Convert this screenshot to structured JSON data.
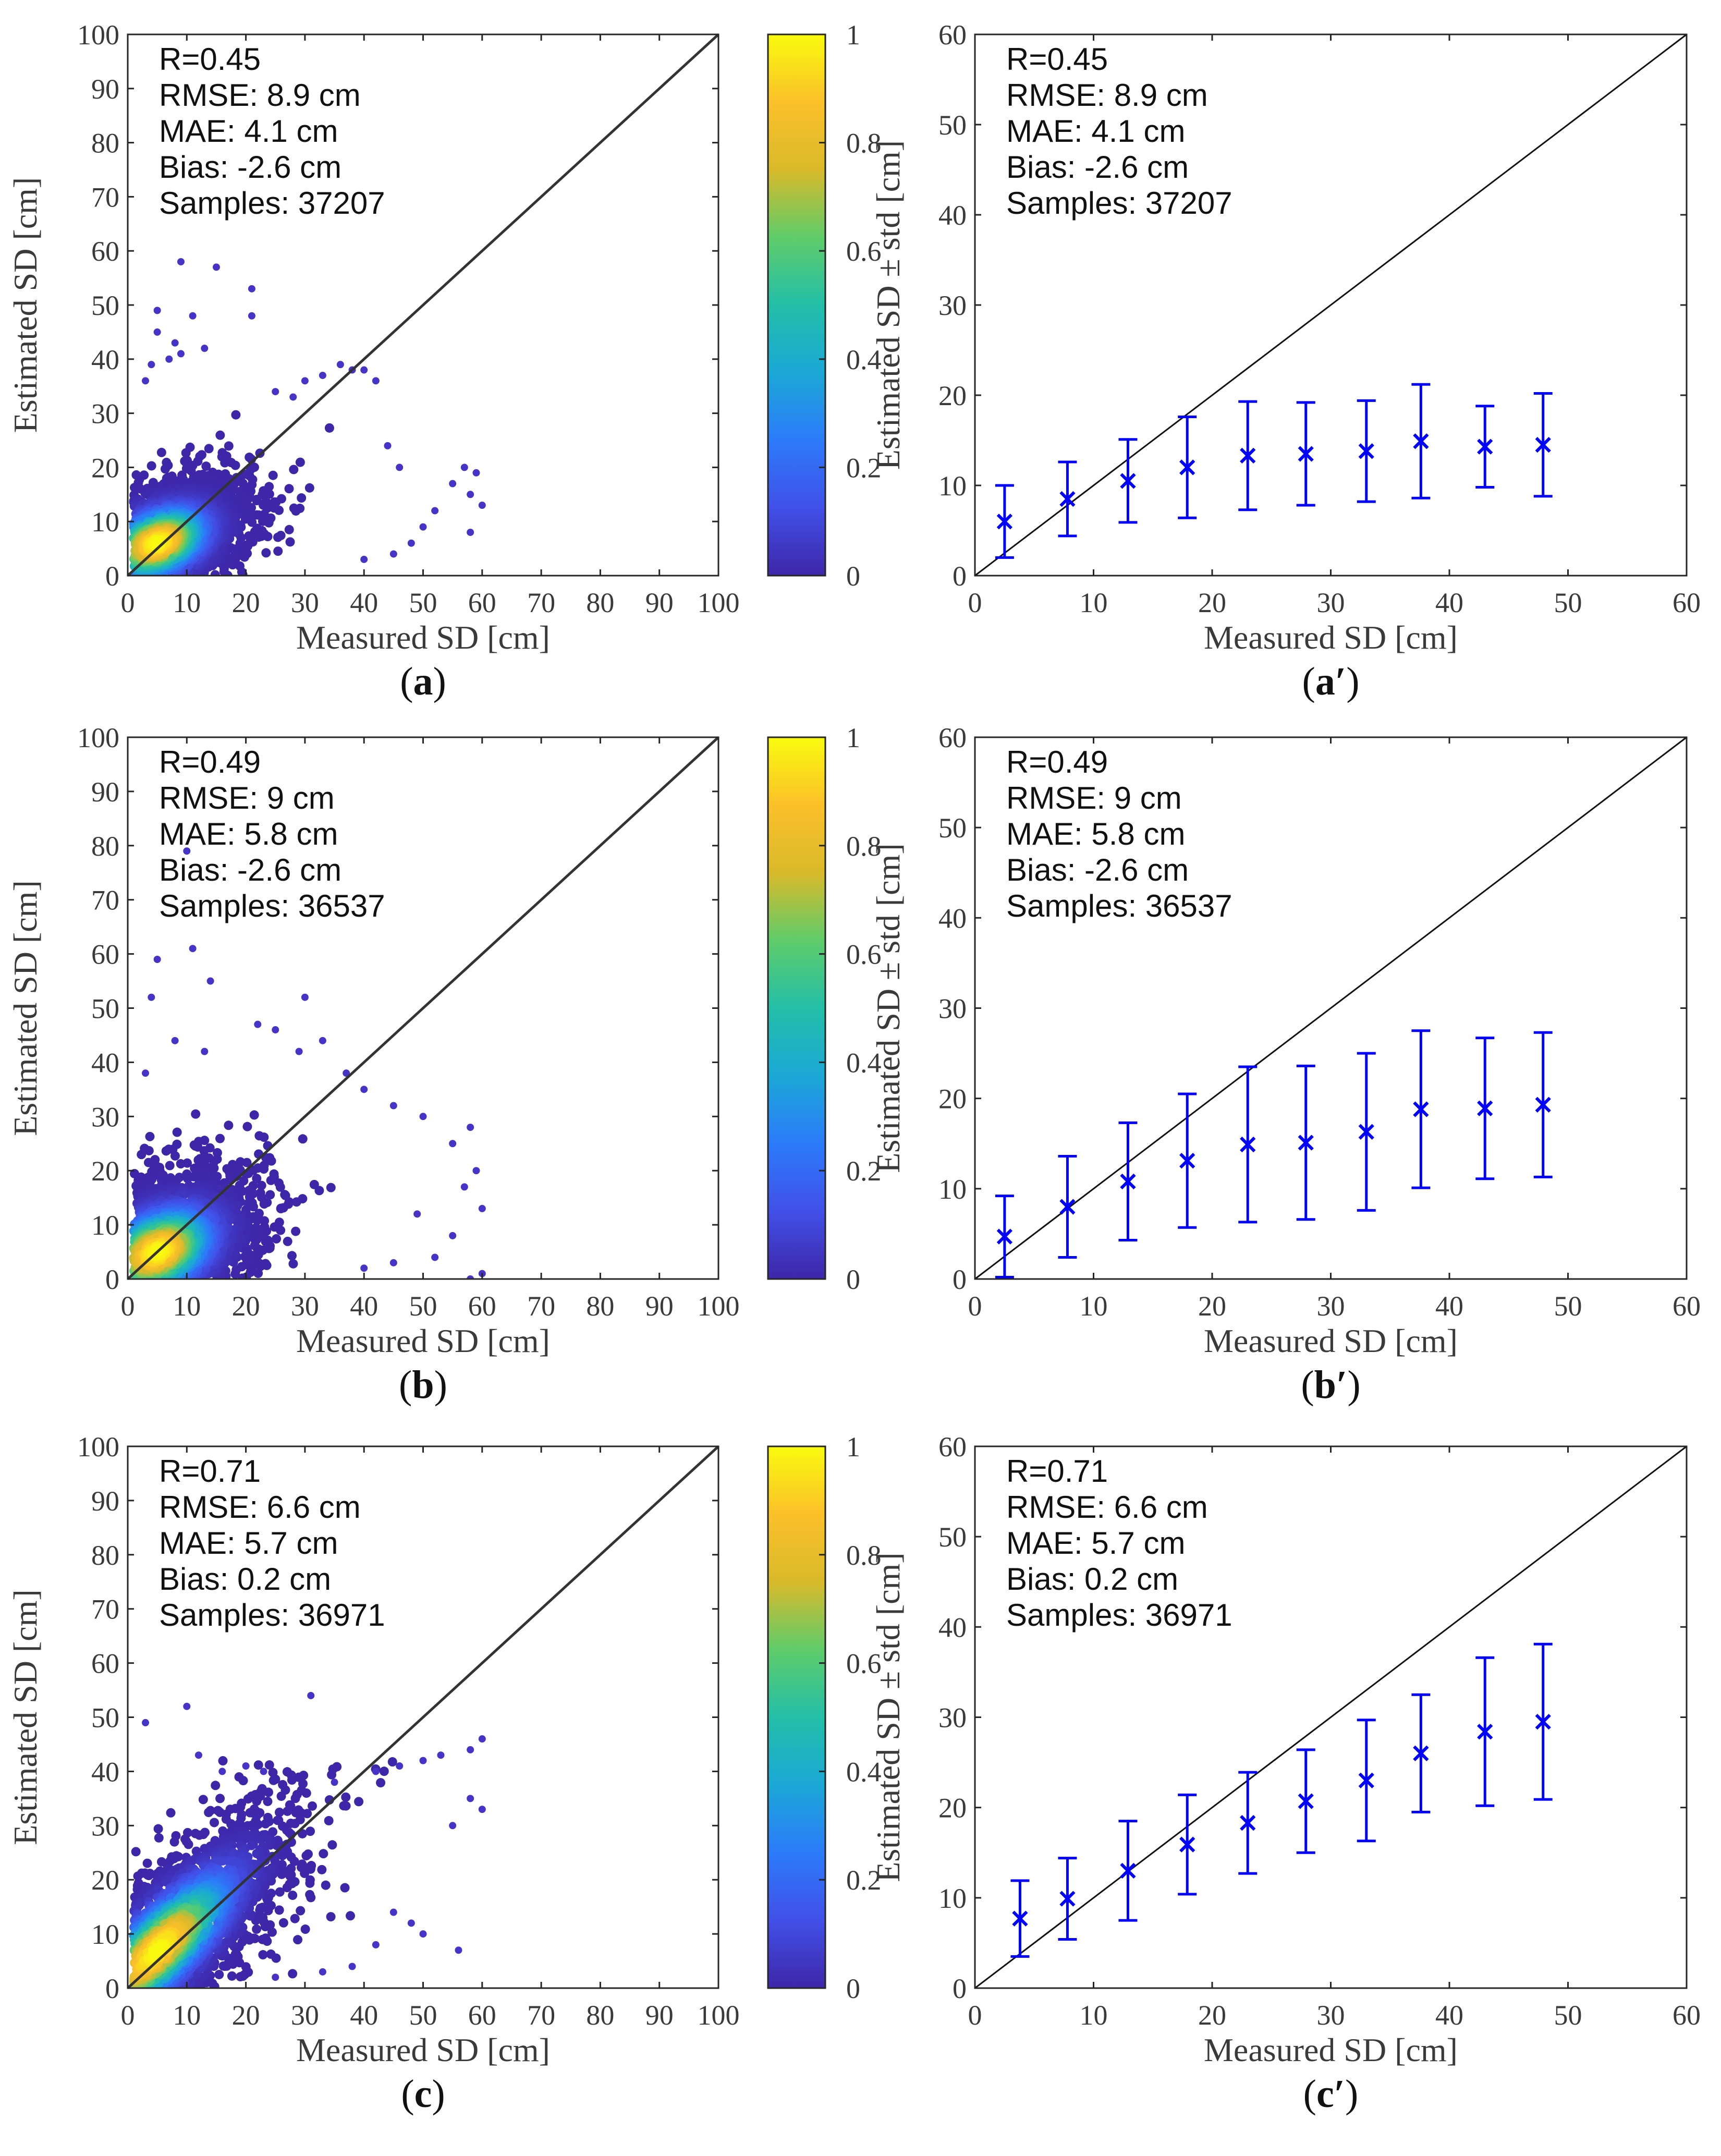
{
  "figure": {
    "colormap": [
      "#3e26a8",
      "#4150e8",
      "#2c7bfa",
      "#1ba8d6",
      "#23bfa8",
      "#5fcc6a",
      "#d9ba2a",
      "#fbc02a",
      "#f9fb0e"
    ],
    "line_color": "#333333",
    "marker_color": "#0000ff",
    "point_color": "#4634c8"
  },
  "chart_data": [
    {
      "id": "a",
      "type": "scatter",
      "style": "density",
      "panel_label": "a",
      "panel_mark": "",
      "xlabel": "Measured SD [cm]",
      "ylabel": "Estimated SD [cm]",
      "xlim": [
        0,
        100
      ],
      "ylim": [
        0,
        100
      ],
      "xticks": [
        0,
        10,
        20,
        30,
        40,
        50,
        60,
        70,
        80,
        90,
        100
      ],
      "yticks": [
        0,
        10,
        20,
        30,
        40,
        50,
        60,
        70,
        80,
        90,
        100
      ],
      "stats": [
        "R=0.45",
        "RMSE: 8.9 cm",
        "MAE: 4.1 cm",
        "Bias: -2.6 cm",
        "Samples: 37207"
      ],
      "density": {
        "mean": [
          5,
          6
        ],
        "cov": [
          [
            20,
            6
          ],
          [
            6,
            12
          ]
        ],
        "extent": [
          [
            1,
            60
          ],
          [
            0,
            36
          ]
        ],
        "outliers": [
          [
            9,
            58
          ],
          [
            15,
            57
          ],
          [
            21,
            53
          ],
          [
            21,
            48
          ],
          [
            5,
            49
          ],
          [
            11,
            48
          ],
          [
            5,
            45
          ],
          [
            8,
            43
          ],
          [
            9,
            41
          ],
          [
            7,
            40
          ],
          [
            13,
            42
          ],
          [
            4,
            39
          ],
          [
            3,
            36
          ],
          [
            36,
            39
          ],
          [
            38,
            38
          ],
          [
            40,
            38
          ],
          [
            42,
            36
          ],
          [
            33,
            37
          ],
          [
            57,
            20
          ],
          [
            59,
            19
          ],
          [
            58,
            15
          ],
          [
            60,
            13
          ],
          [
            58,
            8
          ],
          [
            55,
            17
          ],
          [
            48,
            6
          ],
          [
            45,
            4
          ],
          [
            40,
            3
          ],
          [
            50,
            9
          ],
          [
            52,
            12
          ],
          [
            46,
            20
          ],
          [
            44,
            24
          ],
          [
            30,
            36
          ],
          [
            28,
            33
          ],
          [
            25,
            34
          ]
        ]
      },
      "colorbar": {
        "ticks": [
          0,
          0.2,
          0.4,
          0.6,
          0.8,
          1
        ]
      }
    },
    {
      "id": "a-prime",
      "type": "scatter",
      "style": "errorbar",
      "panel_label": "a",
      "panel_mark": "′",
      "xlabel": "Measured SD [cm]",
      "ylabel": "Estimated SD ± std [cm]",
      "xlim": [
        0,
        60
      ],
      "ylim": [
        0,
        60
      ],
      "xticks": [
        0,
        10,
        20,
        30,
        40,
        50,
        60
      ],
      "yticks": [
        0,
        10,
        20,
        30,
        40,
        50,
        60
      ],
      "stats": [
        "R=0.45",
        "RMSE: 8.9 cm",
        "MAE: 4.1 cm",
        "Bias: -2.6 cm",
        "Samples: 37207"
      ],
      "x": [
        2.5,
        7.8,
        12.9,
        17.9,
        23.0,
        27.9,
        33.0,
        37.6,
        43.0,
        47.9
      ],
      "y": [
        6.0,
        8.5,
        10.5,
        12.0,
        13.3,
        13.5,
        13.8,
        14.9,
        14.3,
        14.5
      ],
      "err": [
        4.0,
        4.1,
        4.6,
        5.6,
        6.0,
        5.7,
        5.6,
        6.3,
        4.5,
        5.7
      ]
    },
    {
      "id": "b",
      "type": "scatter",
      "style": "density",
      "panel_label": "b",
      "panel_mark": "",
      "xlabel": "Measured SD [cm]",
      "ylabel": "Estimated SD [cm]",
      "xlim": [
        0,
        100
      ],
      "ylim": [
        0,
        100
      ],
      "xticks": [
        0,
        10,
        20,
        30,
        40,
        50,
        60,
        70,
        80,
        90,
        100
      ],
      "yticks": [
        0,
        10,
        20,
        30,
        40,
        50,
        60,
        70,
        80,
        90,
        100
      ],
      "stats": [
        "R=0.49",
        "RMSE: 9 cm",
        "MAE: 5.8 cm",
        "Bias: -2.6 cm",
        "Samples: 36537"
      ],
      "density": {
        "mean": [
          5,
          5
        ],
        "cov": [
          [
            25,
            8
          ],
          [
            8,
            18
          ]
        ],
        "extent": [
          [
            1,
            60
          ],
          [
            0,
            34
          ]
        ],
        "outliers": [
          [
            10,
            79
          ],
          [
            5,
            59
          ],
          [
            11,
            61
          ],
          [
            14,
            55
          ],
          [
            4,
            52
          ],
          [
            8,
            44
          ],
          [
            13,
            42
          ],
          [
            22,
            47
          ],
          [
            25,
            46
          ],
          [
            30,
            52
          ],
          [
            33,
            44
          ],
          [
            29,
            42
          ],
          [
            3,
            38
          ],
          [
            37,
            38
          ],
          [
            40,
            35
          ],
          [
            45,
            32
          ],
          [
            50,
            30
          ],
          [
            55,
            25
          ],
          [
            58,
            28
          ],
          [
            59,
            20
          ],
          [
            57,
            17
          ],
          [
            60,
            13
          ],
          [
            60,
            1
          ],
          [
            58,
            0
          ],
          [
            55,
            8
          ],
          [
            49,
            12
          ],
          [
            52,
            4
          ],
          [
            45,
            3
          ],
          [
            40,
            2
          ]
        ]
      },
      "colorbar": {
        "ticks": [
          0,
          0.2,
          0.4,
          0.6,
          0.8,
          1
        ]
      }
    },
    {
      "id": "b-prime",
      "type": "scatter",
      "style": "errorbar",
      "panel_label": "b",
      "panel_mark": "′",
      "xlabel": "Measured SD [cm]",
      "ylabel": "Estimated SD ± std [cm]",
      "xlim": [
        0,
        60
      ],
      "ylim": [
        0,
        60
      ],
      "xticks": [
        0,
        10,
        20,
        30,
        40,
        50,
        60
      ],
      "yticks": [
        0,
        10,
        20,
        30,
        40,
        50,
        60
      ],
      "stats": [
        "R=0.49",
        "RMSE: 9 cm",
        "MAE: 5.8 cm",
        "Bias: -2.6 cm",
        "Samples: 36537"
      ],
      "x": [
        2.5,
        7.8,
        12.9,
        17.9,
        23.0,
        27.9,
        33.0,
        37.6,
        43.0,
        47.9
      ],
      "y": [
        4.7,
        8.0,
        10.8,
        13.1,
        14.9,
        15.1,
        16.3,
        18.8,
        18.9,
        19.3
      ],
      "err": [
        4.5,
        5.6,
        6.5,
        7.4,
        8.6,
        8.5,
        8.7,
        8.7,
        7.8,
        8.0
      ]
    },
    {
      "id": "c",
      "type": "scatter",
      "style": "density",
      "panel_label": "c",
      "panel_mark": "",
      "xlabel": "Measured SD [cm]",
      "ylabel": "Estimated SD [cm]",
      "xlim": [
        0,
        100
      ],
      "ylim": [
        0,
        100
      ],
      "xticks": [
        0,
        10,
        20,
        30,
        40,
        50,
        60,
        70,
        80,
        90,
        100
      ],
      "yticks": [
        0,
        10,
        20,
        30,
        40,
        50,
        60,
        70,
        80,
        90,
        100
      ],
      "stats": [
        "R=0.71",
        "RMSE: 6.6 cm",
        "MAE: 5.7 cm",
        "Bias: 0.2 cm",
        "Samples: 36971"
      ],
      "density": {
        "mean": [
          5,
          7
        ],
        "cov": [
          [
            45,
            40
          ],
          [
            40,
            55
          ]
        ],
        "extent": [
          [
            1,
            60
          ],
          [
            0,
            42
          ]
        ],
        "outliers": [
          [
            10,
            52
          ],
          [
            31,
            54
          ],
          [
            3,
            49
          ],
          [
            12,
            43
          ],
          [
            20,
            41
          ],
          [
            23,
            40
          ],
          [
            16,
            40
          ],
          [
            35,
            38
          ],
          [
            42,
            40
          ],
          [
            46,
            41
          ],
          [
            50,
            42
          ],
          [
            53,
            43
          ],
          [
            58,
            44
          ],
          [
            60,
            46
          ],
          [
            58,
            35
          ],
          [
            60,
            33
          ],
          [
            55,
            30
          ],
          [
            48,
            12
          ],
          [
            50,
            10
          ],
          [
            56,
            7
          ],
          [
            45,
            14
          ],
          [
            42,
            8
          ],
          [
            38,
            4
          ],
          [
            33,
            3
          ],
          [
            25,
            2
          ]
        ]
      },
      "colorbar": {
        "ticks": [
          0,
          0.2,
          0.4,
          0.6,
          0.8,
          1
        ]
      }
    },
    {
      "id": "c-prime",
      "type": "scatter",
      "style": "errorbar",
      "panel_label": "c",
      "panel_mark": "′",
      "xlabel": "Measured SD [cm]",
      "ylabel": "Estimated SD ± std [cm]",
      "xlim": [
        0,
        60
      ],
      "ylim": [
        0,
        60
      ],
      "xticks": [
        0,
        10,
        20,
        30,
        40,
        50,
        60
      ],
      "yticks": [
        0,
        10,
        20,
        30,
        40,
        50,
        60
      ],
      "stats": [
        "R=0.71",
        "RMSE: 6.6 cm",
        "MAE: 5.7 cm",
        "Bias: 0.2 cm",
        "Samples: 36971"
      ],
      "x": [
        3.8,
        7.8,
        12.9,
        17.9,
        23.0,
        27.9,
        33.0,
        37.6,
        43.0,
        47.9
      ],
      "y": [
        7.7,
        9.9,
        13.0,
        15.9,
        18.3,
        20.7,
        23.0,
        26.0,
        28.4,
        29.5
      ],
      "err": [
        4.2,
        4.5,
        5.5,
        5.5,
        5.6,
        5.7,
        6.7,
        6.5,
        8.2,
        8.6
      ]
    }
  ]
}
